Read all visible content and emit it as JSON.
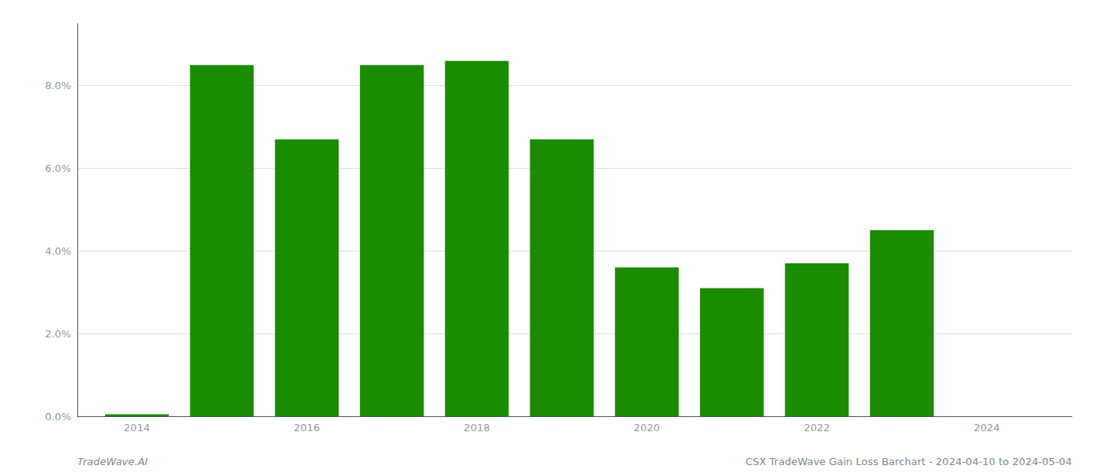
{
  "chart_data": {
    "type": "bar",
    "x": [
      2014,
      2015,
      2016,
      2017,
      2018,
      2019,
      2020,
      2021,
      2022,
      2023
    ],
    "values": [
      0.0005,
      0.085,
      0.067,
      0.085,
      0.086,
      0.067,
      0.036,
      0.031,
      0.037,
      0.045
    ],
    "color": "#1a8c00",
    "xlim": [
      2013.3,
      2025.0
    ],
    "xticks": [
      2014,
      2016,
      2018,
      2020,
      2022,
      2024
    ],
    "ylim": [
      0.0,
      0.095
    ],
    "yticks": [
      {
        "value": 0.0,
        "label": "0.0%"
      },
      {
        "value": 0.02,
        "label": "2.0%"
      },
      {
        "value": 0.04,
        "label": "4.0%"
      },
      {
        "value": 0.06,
        "label": "6.0%"
      },
      {
        "value": 0.08,
        "label": "8.0%"
      }
    ],
    "grid": true,
    "annotations": [
      "TradeWave.AI",
      "CSX TradeWave Gain Loss Barchart - 2024-04-10 to 2024-05-04"
    ]
  }
}
